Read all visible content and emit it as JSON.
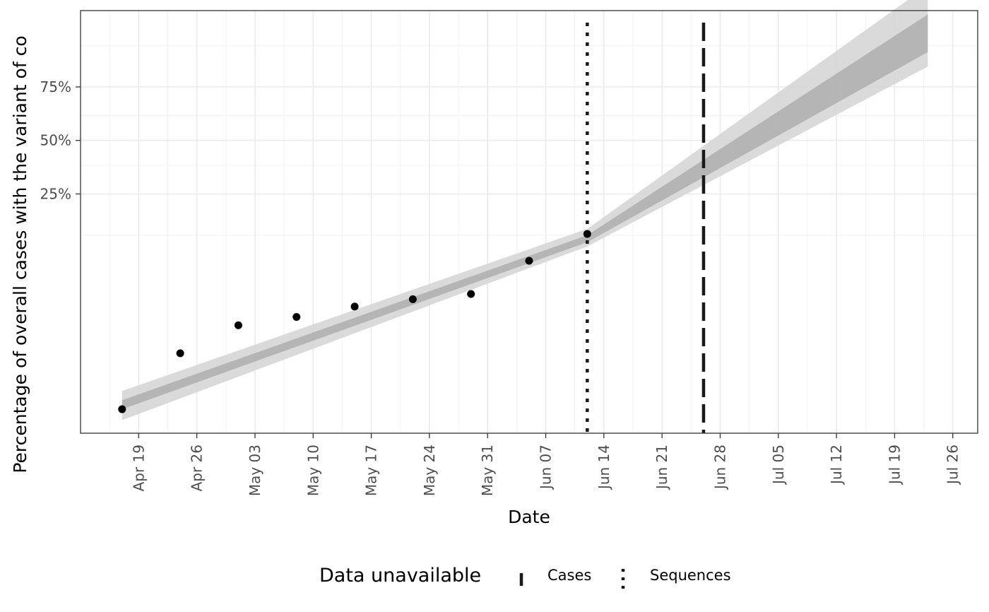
{
  "chart_data": {
    "type": "line",
    "xlabel": "Date",
    "ylabel": "Percentage of overall cases with the variant of co",
    "x_axis": {
      "type": "date",
      "ticks": [
        "2021-04-19",
        "2021-04-26",
        "2021-05-03",
        "2021-05-10",
        "2021-05-17",
        "2021-05-24",
        "2021-05-31",
        "2021-06-07",
        "2021-06-14",
        "2021-06-21",
        "2021-06-28",
        "2021-07-05",
        "2021-07-12",
        "2021-07-19",
        "2021-07-26"
      ],
      "tick_labels": [
        "Apr 19",
        "Apr 26",
        "May 03",
        "May 10",
        "May 17",
        "May 24",
        "May 31",
        "Jun 07",
        "Jun 14",
        "Jun 21",
        "Jun 28",
        "Jul 05",
        "Jul 12",
        "Jul 19",
        "Jul 26"
      ],
      "range": [
        "2021-04-12",
        "2021-07-29"
      ]
    },
    "y_axis": {
      "scale": "logit",
      "tick_values": [
        0.25,
        0.5,
        0.75
      ],
      "tick_labels": [
        "25%",
        "50%",
        "75%"
      ]
    },
    "points": [
      {
        "x": "2021-04-17",
        "y": 0.004
      },
      {
        "x": "2021-04-24",
        "y": 0.0125
      },
      {
        "x": "2021-05-01",
        "y": 0.022
      },
      {
        "x": "2021-05-08",
        "y": 0.026
      },
      {
        "x": "2021-05-15",
        "y": 0.032
      },
      {
        "x": "2021-05-22",
        "y": 0.037
      },
      {
        "x": "2021-05-29",
        "y": 0.041
      },
      {
        "x": "2021-06-05",
        "y": 0.078
      },
      {
        "x": "2021-06-12",
        "y": 0.128
      }
    ],
    "bands": [
      {
        "level": "outer",
        "color": "#d6d6d6",
        "points": [
          {
            "x": "2021-04-17",
            "lo": 0.0032,
            "hi": 0.0058
          },
          {
            "x": "2021-06-12",
            "lo": 0.102,
            "hi": 0.14
          },
          {
            "x": "2021-07-23",
            "lo": 0.82,
            "hi": 0.96
          }
        ]
      },
      {
        "level": "inner",
        "color": "#b0b0b0",
        "points": [
          {
            "x": "2021-04-17",
            "lo": 0.004,
            "hi": 0.0048
          },
          {
            "x": "2021-06-12",
            "lo": 0.11,
            "hi": 0.125
          },
          {
            "x": "2021-07-23",
            "lo": 0.86,
            "hi": 0.93
          }
        ]
      }
    ],
    "vlines": [
      {
        "x": "2021-06-12",
        "style": "dotted",
        "legend": "Sequences"
      },
      {
        "x": "2021-06-26",
        "style": "dashed",
        "legend": "Cases"
      }
    ],
    "grid": true,
    "legend": {
      "position": "bottom",
      "title": "Data unavailable",
      "items": [
        {
          "label": "Cases",
          "style": "dashed"
        },
        {
          "label": "Sequences",
          "style": "dotted"
        }
      ]
    }
  }
}
